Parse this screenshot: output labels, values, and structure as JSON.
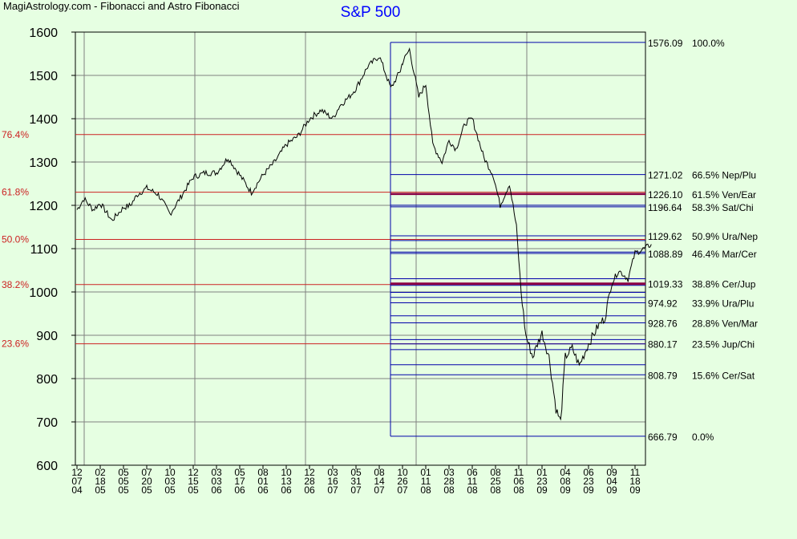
{
  "header": {
    "site_label": "MagiAstrology.com - Fibonacci and Astro Fibonacci",
    "chart_title": "S&P 500"
  },
  "colors": {
    "background": "#e6ffe2",
    "price_line": "#000000",
    "fib_line": "#cc2222",
    "astro_line": "#0000aa",
    "astro_bold": "#880044",
    "title": "#0000ff"
  },
  "chart_data": {
    "type": "line",
    "title": "S&P 500",
    "ylim": [
      600,
      1600
    ],
    "yticks": [
      "600",
      "700",
      "800",
      "900",
      "1000",
      "1100",
      "1200",
      "1300",
      "1400",
      "1500",
      "1600"
    ],
    "grid": true,
    "xtick_labels": [
      [
        "12",
        "07",
        "04"
      ],
      [
        "02",
        "18",
        "05"
      ],
      [
        "05",
        "05",
        "05"
      ],
      [
        "07",
        "20",
        "05"
      ],
      [
        "10",
        "03",
        "05"
      ],
      [
        "12",
        "15",
        "05"
      ],
      [
        "03",
        "03",
        "06"
      ],
      [
        "05",
        "17",
        "06"
      ],
      [
        "08",
        "01",
        "06"
      ],
      [
        "10",
        "13",
        "06"
      ],
      [
        "12",
        "28",
        "06"
      ],
      [
        "03",
        "16",
        "07"
      ],
      [
        "05",
        "31",
        "07"
      ],
      [
        "08",
        "14",
        "07"
      ],
      [
        "10",
        "26",
        "07"
      ],
      [
        "01",
        "11",
        "08"
      ],
      [
        "03",
        "28",
        "08"
      ],
      [
        "06",
        "11",
        "08"
      ],
      [
        "08",
        "25",
        "08"
      ],
      [
        "11",
        "06",
        "08"
      ],
      [
        "01",
        "23",
        "09"
      ],
      [
        "04",
        "08",
        "09"
      ],
      [
        "06",
        "23",
        "09"
      ],
      [
        "09",
        "04",
        "09"
      ],
      [
        "11",
        "18",
        "09"
      ]
    ],
    "series": [
      {
        "x_index": [
          0,
          0.3,
          0.7,
          1,
          1.5,
          2,
          2.3,
          2.6,
          3,
          3.5,
          4,
          4.3,
          4.7,
          5,
          5.5,
          6,
          6.5,
          7,
          7.5,
          8,
          8.5,
          9,
          9.5,
          10,
          10.5,
          11,
          11.3,
          11.7,
          12,
          12.5,
          13,
          13.5,
          13.9,
          14,
          14.3,
          14.7,
          15,
          15.3,
          15.7,
          16,
          16.3,
          16.7,
          17,
          17.5,
          17.9,
          18.2,
          18.6,
          18.9,
          19.1,
          19.3,
          19.6,
          19.8,
          20,
          20.3,
          20.6,
          20.8,
          21,
          21.3,
          21.6,
          22,
          22.4,
          22.7,
          23,
          23.3,
          23.7,
          24,
          24.4,
          24.7
        ],
        "values": [
          1190,
          1215,
          1190,
          1205,
          1165,
          1195,
          1200,
          1225,
          1240,
          1225,
          1180,
          1205,
          1240,
          1265,
          1275,
          1275,
          1310,
          1270,
          1230,
          1270,
          1300,
          1340,
          1360,
          1400,
          1420,
          1400,
          1430,
          1450,
          1470,
          1520,
          1545,
          1470,
          1510,
          1530,
          1560,
          1450,
          1480,
          1340,
          1300,
          1350,
          1330,
          1390,
          1400,
          1310,
          1270,
          1200,
          1250,
          1150,
          1000,
          900,
          850,
          880,
          905,
          850,
          730,
          700,
          850,
          870,
          830,
          880,
          920,
          940,
          1020,
          1050,
          1030,
          1090,
          1100,
          1110
        ]
      }
    ],
    "retracement": {
      "left_labels": [
        "76.4%",
        "61.8%",
        "50.0%",
        "38.2%",
        "23.6%"
      ],
      "left_values": [
        1363.4,
        1230.4,
        1121.4,
        1017.1,
        880.4
      ]
    },
    "astro_levels": [
      {
        "value": 1576.09,
        "label": "1576.09",
        "pct": "100.0%"
      },
      {
        "value": 1271.02,
        "label": "1271.02",
        "pct": "66.5% Nep/Plu"
      },
      {
        "value": 1226.1,
        "label": "1226.10",
        "pct": "61.5% Ven/Ear",
        "bold": true
      },
      {
        "value": 1196.64,
        "label": "1196.64",
        "pct": "58.3% Sat/Chi"
      },
      {
        "value": 1129.62,
        "label": "1129.62",
        "pct": "50.9% Ura/Nep"
      },
      {
        "value": 1088.89,
        "label": "1088.89",
        "pct": "46.4% Mar/Cer"
      },
      {
        "value": 1019.33,
        "label": "1019.33",
        "pct": "38.8% Cer/Jup",
        "bold": true
      },
      {
        "value": 974.92,
        "label": "974.92",
        "pct": "33.9% Ura/Plu"
      },
      {
        "value": 928.76,
        "label": "928.76",
        "pct": "28.8% Ven/Mar"
      },
      {
        "value": 880.17,
        "label": "880.17",
        "pct": "23.5% Jup/Chi"
      },
      {
        "value": 808.79,
        "label": "808.79",
        "pct": "15.6% Cer/Sat"
      },
      {
        "value": 666.79,
        "label": "666.79",
        "pct": "0.0%"
      }
    ],
    "astro_unlabeled": [
      1200.3,
      1118.7,
      1092.2,
      1030.5,
      1015.2,
      999.0,
      987.5,
      945.0,
      890.0,
      867.0,
      832.0
    ],
    "astro_box_start_index": 14
  }
}
